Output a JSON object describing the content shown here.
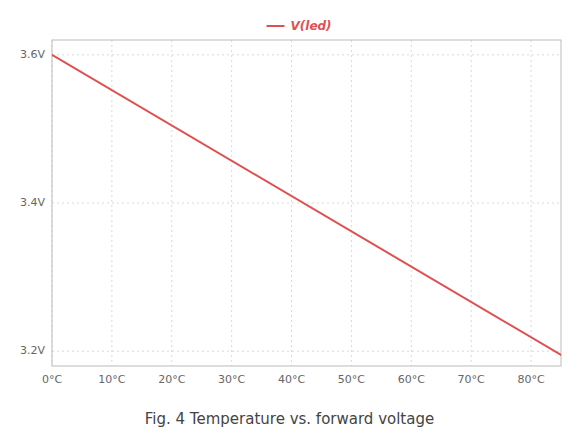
{
  "chart_data": {
    "type": "line",
    "caption": "Fig. 4 Temperature vs. forward voltage",
    "x": [
      0,
      85
    ],
    "series": [
      {
        "name": "V(led)",
        "color": "#e05050",
        "values": [
          3.6,
          3.195
        ]
      }
    ],
    "xlim": [
      0,
      85
    ],
    "ylim": [
      3.18,
      3.62
    ],
    "xticks": [
      {
        "value": 0,
        "label": "0°C"
      },
      {
        "value": 10,
        "label": "10°C"
      },
      {
        "value": 20,
        "label": "20°C"
      },
      {
        "value": 30,
        "label": "30°C"
      },
      {
        "value": 40,
        "label": "40°C"
      },
      {
        "value": 50,
        "label": "50°C"
      },
      {
        "value": 60,
        "label": "60°C"
      },
      {
        "value": 70,
        "label": "70°C"
      },
      {
        "value": 80,
        "label": "80°C"
      }
    ],
    "yticks": [
      {
        "value": 3.2,
        "label": "3.2V"
      },
      {
        "value": 3.4,
        "label": "3.4V"
      },
      {
        "value": 3.6,
        "label": "3.6V"
      }
    ],
    "grid": true,
    "legend": "top"
  }
}
